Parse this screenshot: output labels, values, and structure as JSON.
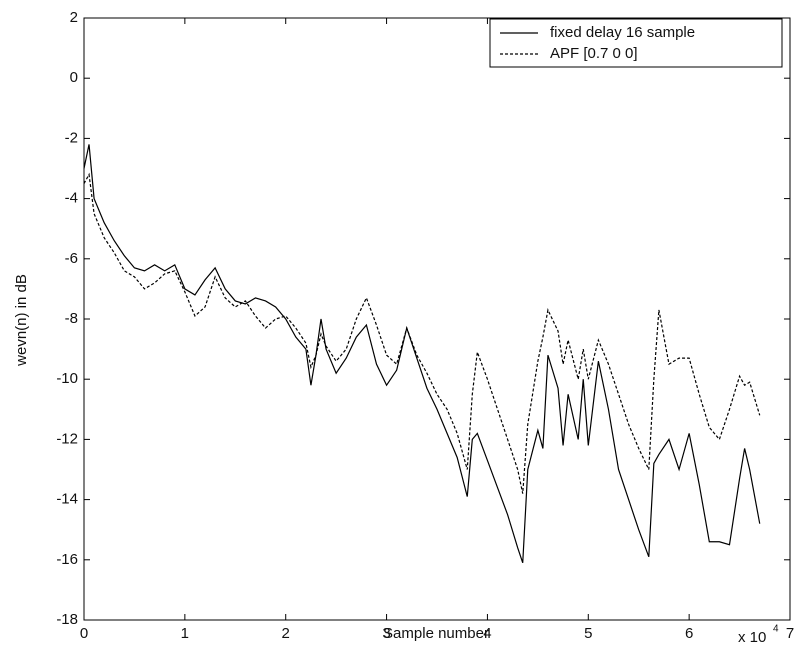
{
  "chart_data": {
    "type": "line",
    "xlabel": "Sample number",
    "ylabel": "wevn(n) in dB",
    "x_multiplier": {
      "base": "x 10",
      "exponent": "4"
    },
    "x": [
      0,
      0.05,
      0.1,
      0.2,
      0.3,
      0.4,
      0.5,
      0.6,
      0.7,
      0.8,
      0.9,
      1.0,
      1.1,
      1.2,
      1.3,
      1.4,
      1.5,
      1.6,
      1.7,
      1.8,
      1.9,
      2.0,
      2.1,
      2.2,
      2.25,
      2.3,
      2.35,
      2.4,
      2.5,
      2.6,
      2.7,
      2.8,
      2.9,
      3.0,
      3.1,
      3.2,
      3.3,
      3.4,
      3.5,
      3.6,
      3.7,
      3.8,
      3.85,
      3.9,
      4.0,
      4.1,
      4.2,
      4.3,
      4.35,
      4.4,
      4.5,
      4.55,
      4.6,
      4.7,
      4.75,
      4.8,
      4.9,
      4.95,
      5.0,
      5.1,
      5.2,
      5.3,
      5.4,
      5.5,
      5.6,
      5.65,
      5.7,
      5.8,
      5.9,
      6.0,
      6.1,
      6.2,
      6.3,
      6.4,
      6.5,
      6.55,
      6.6,
      6.7
    ],
    "series": [
      {
        "name": "fixed delay 16 sample",
        "color": "#000000",
        "style": "solid",
        "values": [
          -3.0,
          -2.2,
          -4.0,
          -4.8,
          -5.4,
          -5.9,
          -6.3,
          -6.4,
          -6.2,
          -6.4,
          -6.2,
          -7.0,
          -7.2,
          -6.7,
          -6.3,
          -7.0,
          -7.4,
          -7.5,
          -7.3,
          -7.4,
          -7.6,
          -8.0,
          -8.6,
          -9.0,
          -10.2,
          -9.2,
          -8.0,
          -9.0,
          -9.8,
          -9.3,
          -8.6,
          -8.2,
          -9.5,
          -10.2,
          -9.7,
          -8.3,
          -9.3,
          -10.3,
          -11.0,
          -11.8,
          -12.6,
          -13.9,
          -12.0,
          -11.8,
          -12.7,
          -13.6,
          -14.5,
          -15.6,
          -16.1,
          -13.0,
          -11.7,
          -12.3,
          -9.2,
          -10.3,
          -12.2,
          -10.5,
          -12.0,
          -10.0,
          -12.2,
          -9.4,
          -11.0,
          -13.0,
          -14.0,
          -15.0,
          -15.9,
          -12.8,
          -12.5,
          -12.0,
          -13.0,
          -11.8,
          -13.5,
          -15.4,
          -15.4,
          -15.5,
          -13.3,
          -12.3,
          -13.0,
          -14.8
        ]
      },
      {
        "name": "APF [0.7 0 0]",
        "color": "#000000",
        "style": "dashed",
        "values": [
          -3.5,
          -3.2,
          -4.5,
          -5.3,
          -5.8,
          -6.4,
          -6.6,
          -7.0,
          -6.8,
          -6.5,
          -6.4,
          -7.1,
          -7.9,
          -7.6,
          -6.6,
          -7.3,
          -7.6,
          -7.4,
          -7.9,
          -8.3,
          -8.0,
          -7.9,
          -8.3,
          -8.8,
          -9.6,
          -9.2,
          -8.5,
          -8.9,
          -9.4,
          -9.0,
          -8.0,
          -7.3,
          -8.2,
          -9.2,
          -9.5,
          -8.3,
          -9.2,
          -9.8,
          -10.5,
          -11.0,
          -11.8,
          -13.0,
          -10.5,
          -9.1,
          -10.0,
          -11.0,
          -12.0,
          -13.0,
          -13.8,
          -11.5,
          -9.4,
          -8.6,
          -7.7,
          -8.4,
          -9.5,
          -8.7,
          -10.0,
          -9.0,
          -10.0,
          -8.7,
          -9.5,
          -10.5,
          -11.5,
          -12.3,
          -13.0,
          -10.0,
          -7.7,
          -9.5,
          -9.3,
          -9.3,
          -10.5,
          -11.6,
          -12.0,
          -11.0,
          -9.9,
          -10.2,
          -10.1,
          -11.2
        ]
      }
    ],
    "xlim": [
      0,
      7
    ],
    "xticks": [
      0,
      1,
      2,
      3,
      4,
      5,
      6,
      7
    ],
    "ylim": [
      -18,
      2
    ],
    "yticks": [
      -18,
      -16,
      -14,
      -12,
      -10,
      -8,
      -6,
      -4,
      -2,
      0,
      2
    ],
    "grid": false,
    "legend": "upper right"
  }
}
